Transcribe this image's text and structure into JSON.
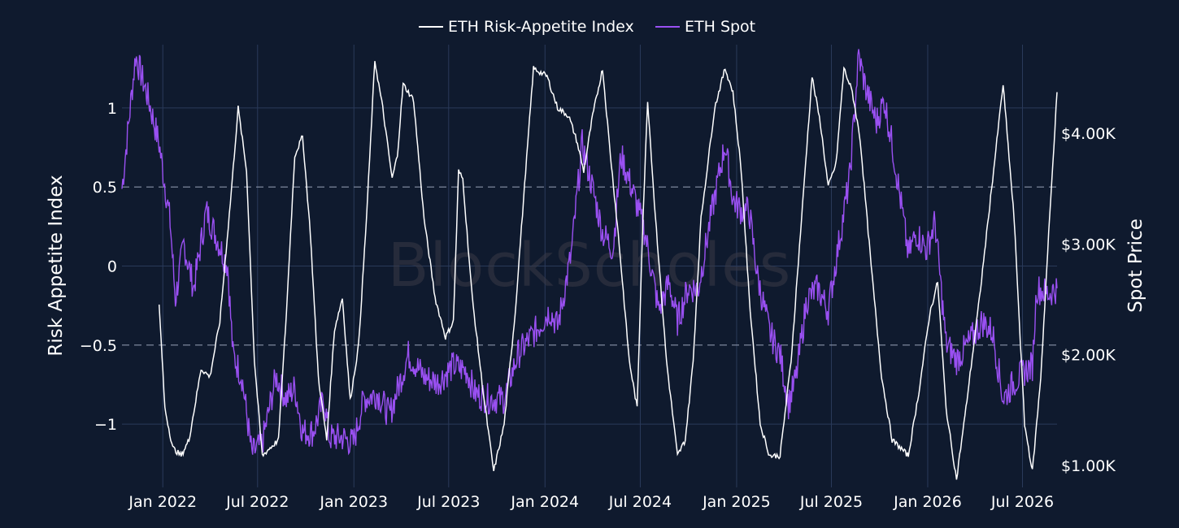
{
  "chart_data": {
    "type": "line",
    "title": "",
    "watermark": "BlockScholes",
    "background": "#0f1a2e",
    "grid": true,
    "legend_position": "top-center",
    "x_ticks": [
      "Jan 2022",
      "Jul 2022",
      "Jan 2023",
      "Jul 2023",
      "Jan 2024",
      "Jul 2024",
      "Jan 2025",
      "Jul 2025",
      "Jan 2026",
      "Jul 2026"
    ],
    "x_tick_dates": [
      "2022-01-01",
      "2022-07-01",
      "2023-01-01",
      "2023-07-01",
      "2024-01-01",
      "2024-07-01",
      "2025-01-01",
      "2025-07-01",
      "2026-01-01",
      "2026-07-01"
    ],
    "x_range": [
      "2021-10-15",
      "2026-09-05"
    ],
    "y_left": {
      "title": "Risk Appetite Index",
      "range": [
        -1.4,
        1.4
      ],
      "ticks": [
        1,
        0.5,
        0,
        -0.5,
        -1
      ],
      "tick_labels": [
        "1",
        "0.5",
        "0",
        "−0.5",
        "−1"
      ],
      "reference_lines": [
        0.5,
        -0.5
      ]
    },
    "y_right": {
      "title": "Spot Price",
      "range": [
        800,
        4800
      ],
      "ticks": [
        4000,
        3000,
        2000,
        1000
      ],
      "tick_labels": [
        "$4.00K",
        "$3.00K",
        "$2.00K",
        "$1.00K"
      ]
    },
    "series": [
      {
        "name": "ETH Risk-Appetite Index",
        "axis": "left",
        "color": "#ffffff",
        "points": [
          [
            "2021-12-25",
            -0.25
          ],
          [
            "2022-01-05",
            -0.9
          ],
          [
            "2022-01-20",
            -1.15
          ],
          [
            "2022-02-05",
            -1.2
          ],
          [
            "2022-02-20",
            -1.1
          ],
          [
            "2022-03-05",
            -0.85
          ],
          [
            "2022-03-15",
            -0.65
          ],
          [
            "2022-04-01",
            -0.7
          ],
          [
            "2022-04-20",
            -0.35
          ],
          [
            "2022-05-10",
            0.4
          ],
          [
            "2022-05-25",
            1.0
          ],
          [
            "2022-06-10",
            0.6
          ],
          [
            "2022-06-25",
            -0.6
          ],
          [
            "2022-07-10",
            -1.2
          ],
          [
            "2022-07-25",
            -1.15
          ],
          [
            "2022-08-10",
            -1.1
          ],
          [
            "2022-08-25",
            -0.3
          ],
          [
            "2022-09-10",
            0.7
          ],
          [
            "2022-09-25",
            0.82
          ],
          [
            "2022-10-10",
            0.2
          ],
          [
            "2022-10-25",
            -0.7
          ],
          [
            "2022-11-10",
            -1.1
          ],
          [
            "2022-11-25",
            -0.4
          ],
          [
            "2022-12-10",
            -0.2
          ],
          [
            "2022-12-25",
            -0.85
          ],
          [
            "2023-01-10",
            -0.5
          ],
          [
            "2023-01-25",
            0.3
          ],
          [
            "2023-02-10",
            1.3
          ],
          [
            "2023-02-25",
            1.0
          ],
          [
            "2023-03-15",
            0.55
          ],
          [
            "2023-03-25",
            0.7
          ],
          [
            "2023-04-05",
            1.15
          ],
          [
            "2023-04-25",
            1.05
          ],
          [
            "2023-05-15",
            0.3
          ],
          [
            "2023-06-05",
            -0.2
          ],
          [
            "2023-06-25",
            -0.45
          ],
          [
            "2023-07-10",
            -0.35
          ],
          [
            "2023-07-20",
            0.6
          ],
          [
            "2023-07-28",
            0.55
          ],
          [
            "2023-08-15",
            -0.2
          ],
          [
            "2023-09-05",
            -0.8
          ],
          [
            "2023-09-25",
            -1.3
          ],
          [
            "2023-10-15",
            -1.0
          ],
          [
            "2023-11-05",
            -0.3
          ],
          [
            "2023-11-25",
            0.6
          ],
          [
            "2023-12-10",
            1.25
          ],
          [
            "2024-01-05",
            1.2
          ],
          [
            "2024-01-25",
            1.0
          ],
          [
            "2024-02-15",
            0.95
          ],
          [
            "2024-03-01",
            0.8
          ],
          [
            "2024-03-15",
            0.6
          ],
          [
            "2024-04-01",
            0.95
          ],
          [
            "2024-04-20",
            1.25
          ],
          [
            "2024-05-05",
            0.7
          ],
          [
            "2024-05-20",
            0.2
          ],
          [
            "2024-06-10",
            -0.6
          ],
          [
            "2024-06-25",
            -0.9
          ],
          [
            "2024-07-05",
            0.2
          ],
          [
            "2024-07-15",
            1.05
          ],
          [
            "2024-07-28",
            0.4
          ],
          [
            "2024-08-20",
            -0.6
          ],
          [
            "2024-09-10",
            -1.2
          ],
          [
            "2024-09-25",
            -1.1
          ],
          [
            "2024-10-10",
            -0.6
          ],
          [
            "2024-10-25",
            0.3
          ],
          [
            "2024-11-20",
            1.0
          ],
          [
            "2024-12-10",
            1.25
          ],
          [
            "2024-12-25",
            1.1
          ],
          [
            "2025-01-10",
            0.6
          ],
          [
            "2025-01-25",
            -0.2
          ],
          [
            "2025-02-15",
            -1.0
          ],
          [
            "2025-03-05",
            -1.2
          ],
          [
            "2025-03-25",
            -1.2
          ],
          [
            "2025-04-15",
            -0.6
          ],
          [
            "2025-05-05",
            0.3
          ],
          [
            "2025-05-25",
            1.2
          ],
          [
            "2025-06-10",
            0.9
          ],
          [
            "2025-06-25",
            0.5
          ],
          [
            "2025-07-10",
            0.65
          ],
          [
            "2025-07-25",
            1.25
          ],
          [
            "2025-08-10",
            1.1
          ],
          [
            "2025-08-25",
            0.8
          ],
          [
            "2025-09-15",
            0.0
          ],
          [
            "2025-10-05",
            -0.7
          ],
          [
            "2025-10-25",
            -1.1
          ],
          [
            "2025-11-10",
            -1.15
          ],
          [
            "2025-11-25",
            -1.2
          ],
          [
            "2025-12-15",
            -0.8
          ],
          [
            "2026-01-05",
            -0.3
          ],
          [
            "2026-01-20",
            -0.1
          ],
          [
            "2026-02-05",
            -0.9
          ],
          [
            "2026-02-25",
            -1.35
          ],
          [
            "2026-03-15",
            -0.9
          ],
          [
            "2026-04-10",
            -0.2
          ],
          [
            "2026-05-05",
            0.55
          ],
          [
            "2026-05-25",
            1.15
          ],
          [
            "2026-06-15",
            0.3
          ],
          [
            "2026-07-05",
            -1.0
          ],
          [
            "2026-07-20",
            -1.3
          ],
          [
            "2026-08-05",
            -0.7
          ],
          [
            "2026-08-20",
            0.2
          ],
          [
            "2026-09-05",
            1.1
          ]
        ]
      },
      {
        "name": "ETH Spot",
        "axis": "right",
        "color": "#9a50f2",
        "points": [
          [
            "2021-10-15",
            3500
          ],
          [
            "2021-11-10",
            4700
          ],
          [
            "2021-12-05",
            4300
          ],
          [
            "2021-12-25",
            3900
          ],
          [
            "2022-01-15",
            3200
          ],
          [
            "2022-01-25",
            2500
          ],
          [
            "2022-02-10",
            3000
          ],
          [
            "2022-03-01",
            2600
          ],
          [
            "2022-03-25",
            3300
          ],
          [
            "2022-04-10",
            3100
          ],
          [
            "2022-05-05",
            2800
          ],
          [
            "2022-05-15",
            2000
          ],
          [
            "2022-06-01",
            1800
          ],
          [
            "2022-06-20",
            1100
          ],
          [
            "2022-07-10",
            1200
          ],
          [
            "2022-08-05",
            1800
          ],
          [
            "2022-08-25",
            1600
          ],
          [
            "2022-09-10",
            1700
          ],
          [
            "2022-09-25",
            1300
          ],
          [
            "2022-10-15",
            1300
          ],
          [
            "2022-11-05",
            1600
          ],
          [
            "2022-11-15",
            1250
          ],
          [
            "2022-12-10",
            1250
          ],
          [
            "2022-12-31",
            1200
          ],
          [
            "2023-01-20",
            1600
          ],
          [
            "2023-02-15",
            1650
          ],
          [
            "2023-03-10",
            1450
          ],
          [
            "2023-04-15",
            2000
          ],
          [
            "2023-05-15",
            1800
          ],
          [
            "2023-06-10",
            1750
          ],
          [
            "2023-07-10",
            1900
          ],
          [
            "2023-08-05",
            1850
          ],
          [
            "2023-08-20",
            1650
          ],
          [
            "2023-09-15",
            1600
          ],
          [
            "2023-10-15",
            1600
          ],
          [
            "2023-11-10",
            2000
          ],
          [
            "2023-12-20",
            2250
          ],
          [
            "2024-01-10",
            2400
          ],
          [
            "2024-01-25",
            2250
          ],
          [
            "2024-02-20",
            2900
          ],
          [
            "2024-03-12",
            3900
          ],
          [
            "2024-04-01",
            3500
          ],
          [
            "2024-04-20",
            3100
          ],
          [
            "2024-05-10",
            2950
          ],
          [
            "2024-05-25",
            3800
          ],
          [
            "2024-06-15",
            3500
          ],
          [
            "2024-07-10",
            3100
          ],
          [
            "2024-08-05",
            2400
          ],
          [
            "2024-08-25",
            2650
          ],
          [
            "2024-09-10",
            2300
          ],
          [
            "2024-09-30",
            2600
          ],
          [
            "2024-10-20",
            2600
          ],
          [
            "2024-11-15",
            3300
          ],
          [
            "2024-12-10",
            3900
          ],
          [
            "2024-12-25",
            3400
          ],
          [
            "2025-01-10",
            3300
          ],
          [
            "2025-01-25",
            3300
          ],
          [
            "2025-02-10",
            2700
          ],
          [
            "2025-03-05",
            2200
          ],
          [
            "2025-03-25",
            2000
          ],
          [
            "2025-04-10",
            1550
          ],
          [
            "2025-04-25",
            1800
          ],
          [
            "2025-05-15",
            2500
          ],
          [
            "2025-06-05",
            2600
          ],
          [
            "2025-06-25",
            2400
          ],
          [
            "2025-07-15",
            3000
          ],
          [
            "2025-08-05",
            3600
          ],
          [
            "2025-08-22",
            4700
          ],
          [
            "2025-09-05",
            4400
          ],
          [
            "2025-09-25",
            4100
          ],
          [
            "2025-10-10",
            4300
          ],
          [
            "2025-10-25",
            3900
          ],
          [
            "2025-11-10",
            3400
          ],
          [
            "2025-11-25",
            2900
          ],
          [
            "2025-12-10",
            3100
          ],
          [
            "2025-12-30",
            2950
          ],
          [
            "2026-01-15",
            3200
          ],
          [
            "2026-02-05",
            2100
          ],
          [
            "2026-02-25",
            1950
          ],
          [
            "2026-03-20",
            2100
          ],
          [
            "2026-04-15",
            2300
          ],
          [
            "2026-05-05",
            2200
          ],
          [
            "2026-05-25",
            1600
          ],
          [
            "2026-06-15",
            1750
          ],
          [
            "2026-07-05",
            1850
          ],
          [
            "2026-07-20",
            1900
          ],
          [
            "2026-07-28",
            2600
          ],
          [
            "2026-08-20",
            2550
          ],
          [
            "2026-09-05",
            2600
          ]
        ]
      }
    ]
  }
}
